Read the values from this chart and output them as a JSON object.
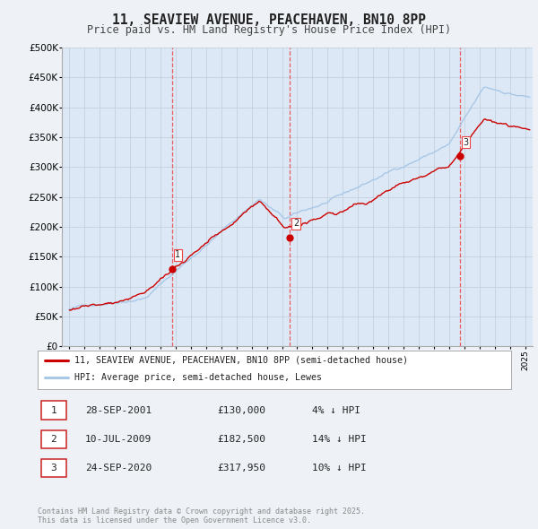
{
  "title": "11, SEAVIEW AVENUE, PEACEHAVEN, BN10 8PP",
  "subtitle": "Price paid vs. HM Land Registry's House Price Index (HPI)",
  "title_fontsize": 10.5,
  "subtitle_fontsize": 8.5,
  "xlim": [
    1994.5,
    2025.5
  ],
  "ylim": [
    0,
    500000
  ],
  "yticks": [
    0,
    50000,
    100000,
    150000,
    200000,
    250000,
    300000,
    350000,
    400000,
    450000,
    500000
  ],
  "ytick_labels": [
    "£0",
    "£50K",
    "£100K",
    "£150K",
    "£200K",
    "£250K",
    "£300K",
    "£350K",
    "£400K",
    "£450K",
    "£500K"
  ],
  "hpi_color": "#a8c8e8",
  "price_color": "#cc0000",
  "marker_color": "#cc0000",
  "vline_color": "#ee4444",
  "background_color": "#eef2f7",
  "plot_bg_color": "#dce8f5",
  "grid_color": "#c0ccd8",
  "sale_markers": [
    {
      "year": 2001.745,
      "price": 130000,
      "label": "1"
    },
    {
      "year": 2009.525,
      "price": 182500,
      "label": "2"
    },
    {
      "year": 2020.729,
      "price": 317950,
      "label": "3"
    }
  ],
  "legend_entries": [
    {
      "label": "11, SEAVIEW AVENUE, PEACEHAVEN, BN10 8PP (semi-detached house)",
      "color": "#cc0000"
    },
    {
      "label": "HPI: Average price, semi-detached house, Lewes",
      "color": "#a8c8e8"
    }
  ],
  "table_rows": [
    {
      "num": "1",
      "date": "28-SEP-2001",
      "price": "£130,000",
      "hpi": "4% ↓ HPI"
    },
    {
      "num": "2",
      "date": "10-JUL-2009",
      "price": "£182,500",
      "hpi": "14% ↓ HPI"
    },
    {
      "num": "3",
      "date": "24-SEP-2020",
      "price": "£317,950",
      "hpi": "10% ↓ HPI"
    }
  ],
  "footer": "Contains HM Land Registry data © Crown copyright and database right 2025.\nThis data is licensed under the Open Government Licence v3.0."
}
